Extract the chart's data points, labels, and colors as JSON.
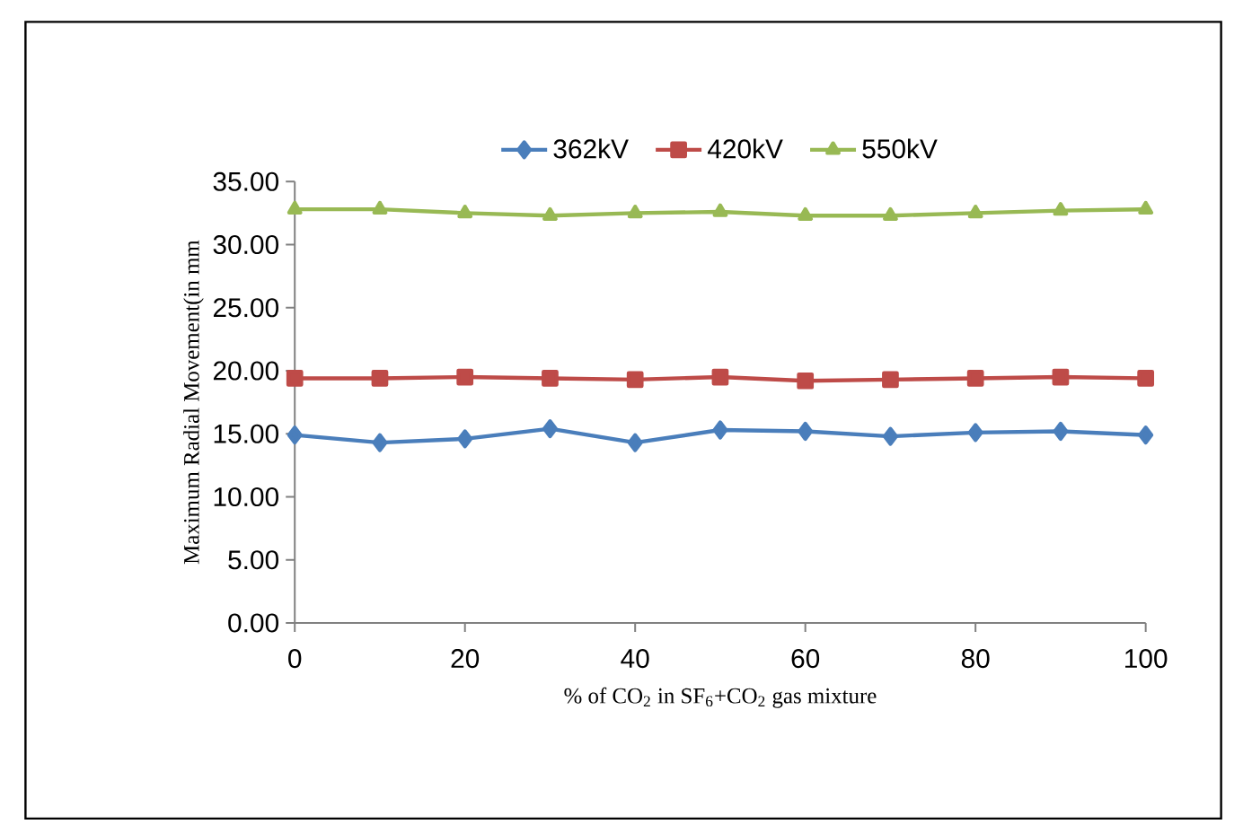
{
  "chart_data": {
    "type": "line",
    "xlabel": "% of CO$_{2}$ in SF$_{6}$+CO$_{2}$ gas mixture",
    "ylabel": "Maximum Radial Movement(in mm",
    "x": [
      0,
      10,
      20,
      30,
      40,
      50,
      60,
      70,
      80,
      90,
      100
    ],
    "series": [
      {
        "name": "362kV",
        "color": "#4a7ebb",
        "marker": "diamond",
        "values": [
          14.9,
          14.3,
          14.6,
          15.4,
          14.3,
          15.3,
          15.2,
          14.8,
          15.1,
          15.2,
          14.9
        ]
      },
      {
        "name": "420kV",
        "color": "#be4b48",
        "marker": "square",
        "values": [
          19.4,
          19.4,
          19.5,
          19.4,
          19.3,
          19.5,
          19.2,
          19.3,
          19.4,
          19.5,
          19.4
        ]
      },
      {
        "name": "550kV",
        "color": "#98b954",
        "marker": "triangle",
        "values": [
          32.8,
          32.8,
          32.5,
          32.3,
          32.5,
          32.6,
          32.3,
          32.3,
          32.5,
          32.7,
          32.8
        ]
      }
    ],
    "xlim": [
      0,
      100
    ],
    "ylim": [
      0,
      35
    ],
    "xticks": [
      0,
      20,
      40,
      60,
      80,
      100
    ],
    "yticks": [
      {
        "value": 0,
        "label": "0.00"
      },
      {
        "value": 5,
        "label": "5.00"
      },
      {
        "value": 10,
        "label": "10.00"
      },
      {
        "value": 15,
        "label": "15.00"
      },
      {
        "value": 20,
        "label": "20.00"
      },
      {
        "value": 25,
        "label": "25.00"
      },
      {
        "value": 30,
        "label": "30.00"
      },
      {
        "value": 35,
        "label": "35.00"
      }
    ],
    "grid": false,
    "legend": "top",
    "line_style": "solid"
  }
}
